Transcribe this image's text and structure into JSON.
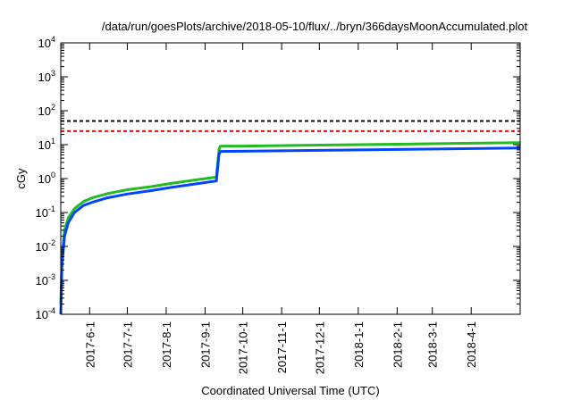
{
  "chart_data": {
    "type": "line",
    "title": "/data/run/goesPlots/archive/2018-05-10/flux/../bryn/366daysMoonAccumulated.plot",
    "xlabel": "Coordinated Universal Time (UTC)",
    "ylabel": "cGy",
    "y_scale": "log",
    "ylim": [
      0.0001,
      10000
    ],
    "xlim": [
      "2017-05-09",
      "2018-05-10"
    ],
    "y_ticks": [
      {
        "base": "10",
        "exp": "-4"
      },
      {
        "base": "10",
        "exp": "-3"
      },
      {
        "base": "10",
        "exp": "-2"
      },
      {
        "base": "10",
        "exp": "-1"
      },
      {
        "base": "10",
        "exp": "0"
      },
      {
        "base": "10",
        "exp": "1"
      },
      {
        "base": "10",
        "exp": "2"
      },
      {
        "base": "10",
        "exp": "3"
      },
      {
        "base": "10",
        "exp": "4"
      }
    ],
    "x_ticks": [
      {
        "label": "2017-6-1",
        "date": "2017-06-01"
      },
      {
        "label": "2017-7-1",
        "date": "2017-07-01"
      },
      {
        "label": "2017-8-1",
        "date": "2017-08-01"
      },
      {
        "label": "2017-9-1",
        "date": "2017-09-01"
      },
      {
        "label": "2017-10-1",
        "date": "2017-10-01"
      },
      {
        "label": "2017-11-1",
        "date": "2017-11-01"
      },
      {
        "label": "2017-12-1",
        "date": "2017-12-01"
      },
      {
        "label": "2018-1-1",
        "date": "2018-01-01"
      },
      {
        "label": "2018-2-1",
        "date": "2018-02-01"
      },
      {
        "label": "2018-3-1",
        "date": "2018-03-01"
      },
      {
        "label": "2018-4-1",
        "date": "2018-04-01"
      }
    ],
    "grid": false,
    "reference_lines": [
      {
        "y": 50,
        "color": "#000000",
        "style": "dashed"
      },
      {
        "y": 25,
        "color": "#ff0000",
        "style": "dashed"
      }
    ],
    "series": [
      {
        "color": "#22bb22",
        "x": [
          "2017-05-09",
          "2017-05-10",
          "2017-05-12",
          "2017-05-15",
          "2017-05-20",
          "2017-05-27",
          "2017-06-03",
          "2017-06-15",
          "2017-07-01",
          "2017-07-20",
          "2017-08-05",
          "2017-08-25",
          "2017-09-10",
          "2017-09-12",
          "2017-09-13",
          "2017-10-01",
          "2017-12-01",
          "2018-02-01",
          "2018-05-10"
        ],
        "y": [
          0.0002,
          0.005,
          0.03,
          0.07,
          0.13,
          0.21,
          0.27,
          0.36,
          0.47,
          0.58,
          0.72,
          0.92,
          1.1,
          7.0,
          9.0,
          9.1,
          9.7,
          10.3,
          11.5
        ]
      },
      {
        "color": "#0044ff",
        "x": [
          "2017-05-09",
          "2017-05-10",
          "2017-05-12",
          "2017-05-15",
          "2017-05-20",
          "2017-05-27",
          "2017-06-03",
          "2017-06-15",
          "2017-07-01",
          "2017-07-20",
          "2017-08-05",
          "2017-08-25",
          "2017-09-10",
          "2017-09-12",
          "2017-09-13",
          "2017-10-01",
          "2017-12-01",
          "2018-02-01",
          "2018-05-10"
        ],
        "y": [
          0.0001,
          0.003,
          0.02,
          0.05,
          0.1,
          0.16,
          0.2,
          0.27,
          0.35,
          0.44,
          0.55,
          0.7,
          0.85,
          5.0,
          6.3,
          6.4,
          6.8,
          7.2,
          8.0
        ]
      }
    ]
  }
}
